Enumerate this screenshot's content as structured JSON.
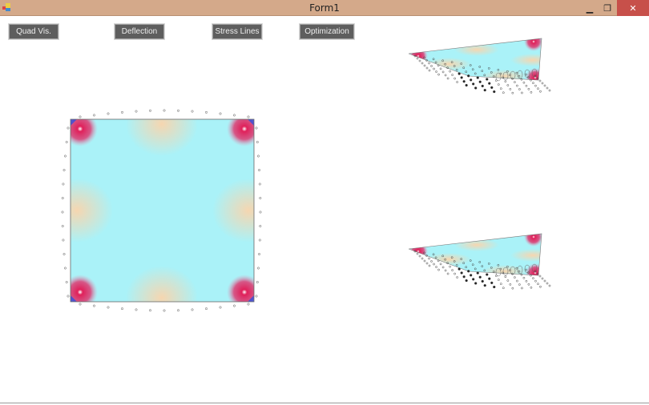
{
  "window": {
    "title": "Form1",
    "icon": "winforms-app-icon",
    "minimize_icon": "minimize-icon",
    "restore_icon": "restore-icon",
    "close_icon": "close-icon"
  },
  "toolbar": {
    "buttons": [
      {
        "label": "Quad Vis."
      },
      {
        "label": "Deflection"
      },
      {
        "label": "Stress Lines"
      },
      {
        "label": "Optimization"
      }
    ]
  },
  "colors": {
    "titlebar": "#d4a98a",
    "close": "#c7504a",
    "button": "#5e5e5e",
    "plate_base": "#aaf2f8",
    "plate_warm": "#f4dcb8",
    "corner_hot": "#e0205a",
    "corner_cold": "#3050e0"
  }
}
